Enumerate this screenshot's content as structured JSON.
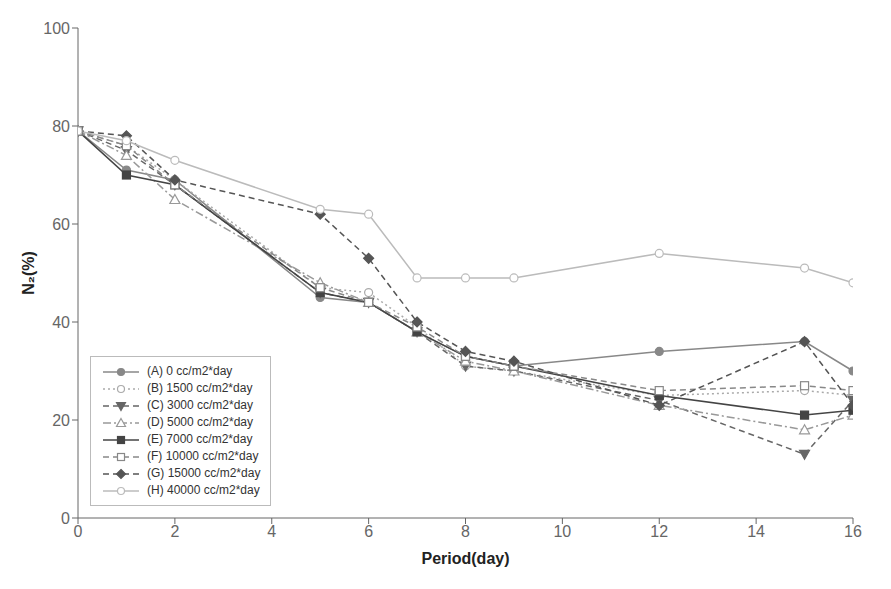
{
  "chart_data": {
    "type": "line",
    "xlabel": "Period(day)",
    "ylabel": "N₂(%)",
    "xlim": [
      0,
      16
    ],
    "ylim": [
      0,
      100
    ],
    "xticks": [
      0,
      2,
      4,
      6,
      8,
      10,
      12,
      14,
      16
    ],
    "yticks": [
      0,
      20,
      40,
      60,
      80,
      100
    ],
    "grid": false,
    "legend": "lower left",
    "x": [
      0,
      1,
      2,
      5,
      6,
      7,
      8,
      9,
      12,
      15,
      16
    ],
    "series": [
      {
        "name": "(A) 0 cc/m2*day",
        "color": "#888888",
        "marker": "circle",
        "line_style": "solid",
        "values": [
          79,
          71,
          69,
          45,
          44,
          38,
          33,
          31,
          34,
          36,
          30
        ]
      },
      {
        "name": "(B) 1500 cc/m2*day",
        "color": "#aaaaaa",
        "marker": "open-circle",
        "line_style": "dotted",
        "values": [
          79,
          76,
          69,
          47,
          46,
          39,
          31,
          30,
          25,
          26,
          25
        ]
      },
      {
        "name": "(C) 3000 cc/m2*day",
        "color": "#666666",
        "marker": "triangle-down",
        "line_style": "dashed",
        "values": [
          79,
          75,
          68,
          46,
          44,
          38,
          31,
          30,
          24,
          13,
          24
        ]
      },
      {
        "name": "(D) 5000 cc/m2*day",
        "color": "#999999",
        "marker": "open-triangle",
        "line_style": "dashdot",
        "values": [
          79,
          74,
          65,
          48,
          44,
          38,
          32,
          30,
          23,
          18,
          21
        ]
      },
      {
        "name": "(E) 7000 cc/m2*day",
        "color": "#444444",
        "marker": "square",
        "line_style": "solid",
        "values": [
          79,
          70,
          68,
          46,
          44,
          38,
          33,
          31,
          25,
          21,
          22
        ]
      },
      {
        "name": "(F) 10000 cc/m2*day",
        "color": "#888888",
        "marker": "open-square",
        "line_style": "dashed",
        "values": [
          79,
          76,
          68,
          47,
          44,
          39,
          33,
          31,
          26,
          27,
          26
        ]
      },
      {
        "name": "(G) 15000 cc/m2*day",
        "color": "#555555",
        "marker": "diamond",
        "line_style": "dashed",
        "values": [
          79,
          78,
          69,
          62,
          53,
          40,
          34,
          32,
          23,
          36,
          23
        ]
      },
      {
        "name": "(H) 40000 cc/m2*day",
        "color": "#bbbbbb",
        "marker": "open-circle",
        "line_style": "solid",
        "values": [
          79,
          77,
          73,
          63,
          62,
          49,
          49,
          49,
          54,
          51,
          48
        ]
      }
    ]
  }
}
